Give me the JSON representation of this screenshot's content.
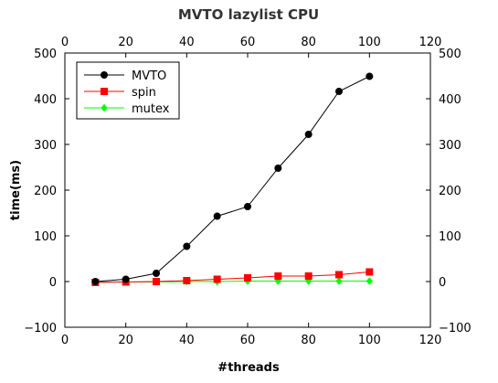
{
  "chart_data": {
    "type": "line",
    "title": "MVTO lazylist CPU",
    "xlabel": "#threads",
    "ylabel": "time(ms)",
    "xlim": [
      0,
      120
    ],
    "ylim": [
      -100,
      500
    ],
    "xticks": [
      0,
      20,
      40,
      60,
      80,
      100,
      120
    ],
    "yticks": [
      -100,
      0,
      100,
      200,
      300,
      400,
      500
    ],
    "x": [
      10,
      20,
      30,
      40,
      50,
      60,
      70,
      80,
      90,
      100
    ],
    "grid": false,
    "legend_position": "top-left",
    "series": [
      {
        "name": "MVTO",
        "color": "#000000",
        "marker": "circle",
        "values": [
          0,
          5,
          18,
          77,
          143,
          164,
          248,
          322,
          416,
          449
        ]
      },
      {
        "name": "spin",
        "color": "#ff0000",
        "marker": "square",
        "values": [
          -2,
          -1,
          0,
          2,
          5,
          8,
          12,
          12,
          15,
          21
        ]
      },
      {
        "name": "mutex",
        "color": "#00ff00",
        "marker": "diamond",
        "values": [
          -1,
          -1,
          -1,
          0,
          0,
          1,
          1,
          1,
          1,
          1
        ]
      }
    ]
  }
}
